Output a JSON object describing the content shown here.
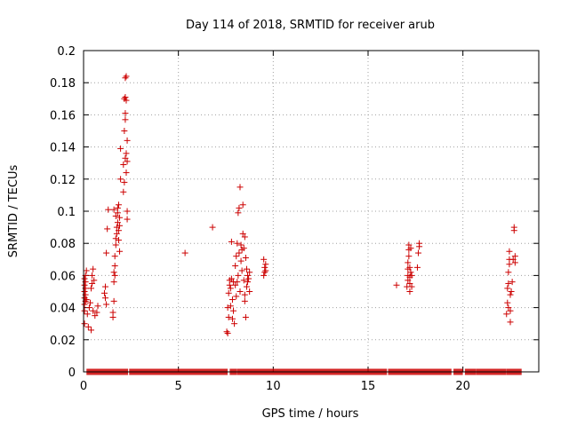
{
  "chart_data": {
    "type": "scatter",
    "title": "Day 114 of 2018, SRMTID for receiver arub",
    "xlabel": "GPS time / hours",
    "ylabel": "SRMTID / TECUs",
    "xlim": [
      0,
      24
    ],
    "ylim": [
      0,
      0.2
    ],
    "xticks": [
      0,
      5,
      10,
      15,
      20
    ],
    "yticks": [
      0,
      0.02,
      0.04,
      0.06,
      0.08,
      0.1,
      0.12,
      0.14,
      0.16,
      0.18,
      0.2
    ],
    "grid": true,
    "marker": "+",
    "series": [
      {
        "name": "SRMTID",
        "color": "#cc0000",
        "points": [
          [
            0.05,
            0.03
          ],
          [
            0.05,
            0.038
          ],
          [
            0.05,
            0.042
          ],
          [
            0.05,
            0.046
          ],
          [
            0.05,
            0.05
          ],
          [
            0.05,
            0.054
          ],
          [
            0.05,
            0.058
          ],
          [
            0.1,
            0.044
          ],
          [
            0.1,
            0.048
          ],
          [
            0.1,
            0.052
          ],
          [
            0.1,
            0.056
          ],
          [
            0.1,
            0.06
          ],
          [
            0.15,
            0.045
          ],
          [
            0.15,
            0.063
          ],
          [
            0.2,
            0.036
          ],
          [
            0.25,
            0.028
          ],
          [
            0.3,
            0.04
          ],
          [
            0.35,
            0.043
          ],
          [
            0.4,
            0.026
          ],
          [
            0.4,
            0.052
          ],
          [
            0.45,
            0.055
          ],
          [
            0.45,
            0.06
          ],
          [
            0.5,
            0.064
          ],
          [
            0.5,
            0.038
          ],
          [
            0.55,
            0.057
          ],
          [
            0.6,
            0.035
          ],
          [
            0.7,
            0.037
          ],
          [
            0.75,
            0.041
          ],
          [
            1.1,
            0.049
          ],
          [
            1.15,
            0.053
          ],
          [
            1.15,
            0.046
          ],
          [
            1.2,
            0.042
          ],
          [
            1.2,
            0.074
          ],
          [
            1.25,
            0.089
          ],
          [
            1.3,
            0.101
          ],
          [
            1.55,
            0.034
          ],
          [
            1.55,
            0.037
          ],
          [
            1.6,
            0.044
          ],
          [
            1.6,
            0.056
          ],
          [
            1.6,
            0.062
          ],
          [
            1.6,
            0.101
          ],
          [
            1.65,
            0.06
          ],
          [
            1.65,
            0.066
          ],
          [
            1.65,
            0.072
          ],
          [
            1.7,
            0.079
          ],
          [
            1.7,
            0.083
          ],
          [
            1.7,
            0.097
          ],
          [
            1.75,
            0.086
          ],
          [
            1.75,
            0.09
          ],
          [
            1.8,
            0.093
          ],
          [
            1.8,
            0.099
          ],
          [
            1.8,
            0.102
          ],
          [
            1.85,
            0.082
          ],
          [
            1.85,
            0.088
          ],
          [
            1.85,
            0.104
          ],
          [
            1.9,
            0.075
          ],
          [
            1.9,
            0.091
          ],
          [
            1.9,
            0.096
          ],
          [
            1.95,
            0.12
          ],
          [
            1.95,
            0.139
          ],
          [
            2.1,
            0.129
          ],
          [
            2.1,
            0.112
          ],
          [
            2.15,
            0.118
          ],
          [
            2.15,
            0.15
          ],
          [
            2.15,
            0.17
          ],
          [
            2.2,
            0.133
          ],
          [
            2.2,
            0.157
          ],
          [
            2.2,
            0.161
          ],
          [
            2.2,
            0.171
          ],
          [
            2.2,
            0.183
          ],
          [
            2.25,
            0.124
          ],
          [
            2.25,
            0.136
          ],
          [
            2.25,
            0.184
          ],
          [
            2.25,
            0.169
          ],
          [
            2.3,
            0.095
          ],
          [
            2.3,
            0.1
          ],
          [
            2.3,
            0.144
          ],
          [
            2.3,
            0.131
          ],
          [
            5.35,
            0.074
          ],
          [
            6.8,
            0.09
          ],
          [
            7.55,
            0.025
          ],
          [
            7.6,
            0.024
          ],
          [
            7.6,
            0.04
          ],
          [
            7.65,
            0.034
          ],
          [
            7.65,
            0.049
          ],
          [
            7.7,
            0.054
          ],
          [
            7.7,
            0.057
          ],
          [
            7.75,
            0.052
          ],
          [
            7.75,
            0.041
          ],
          [
            7.8,
            0.058
          ],
          [
            7.8,
            0.081
          ],
          [
            7.85,
            0.033
          ],
          [
            7.85,
            0.045
          ],
          [
            7.9,
            0.056
          ],
          [
            7.9,
            0.038
          ],
          [
            7.95,
            0.03
          ],
          [
            8.0,
            0.066
          ],
          [
            8.0,
            0.054
          ],
          [
            8.05,
            0.072
          ],
          [
            8.05,
            0.047
          ],
          [
            8.1,
            0.08
          ],
          [
            8.1,
            0.056
          ],
          [
            8.15,
            0.06
          ],
          [
            8.15,
            0.099
          ],
          [
            8.2,
            0.074
          ],
          [
            8.2,
            0.102
          ],
          [
            8.25,
            0.115
          ],
          [
            8.25,
            0.05
          ],
          [
            8.3,
            0.069
          ],
          [
            8.3,
            0.079
          ],
          [
            8.35,
            0.063
          ],
          [
            8.35,
            0.076
          ],
          [
            8.4,
            0.104
          ],
          [
            8.4,
            0.086
          ],
          [
            8.45,
            0.057
          ],
          [
            8.45,
            0.077
          ],
          [
            8.5,
            0.044
          ],
          [
            8.5,
            0.048
          ],
          [
            8.5,
            0.084
          ],
          [
            8.55,
            0.034
          ],
          [
            8.55,
            0.071
          ],
          [
            8.6,
            0.053
          ],
          [
            8.6,
            0.064
          ],
          [
            8.65,
            0.056
          ],
          [
            8.65,
            0.06
          ],
          [
            8.7,
            0.058
          ],
          [
            8.75,
            0.062
          ],
          [
            8.75,
            0.05
          ],
          [
            9.5,
            0.07
          ],
          [
            9.5,
            0.06
          ],
          [
            9.55,
            0.065
          ],
          [
            9.55,
            0.062
          ],
          [
            9.6,
            0.067
          ],
          [
            9.6,
            0.063
          ],
          [
            16.5,
            0.054
          ],
          [
            17.05,
            0.053
          ],
          [
            17.1,
            0.057
          ],
          [
            17.1,
            0.06
          ],
          [
            17.1,
            0.064
          ],
          [
            17.1,
            0.068
          ],
          [
            17.15,
            0.072
          ],
          [
            17.15,
            0.076
          ],
          [
            17.15,
            0.079
          ],
          [
            17.2,
            0.05
          ],
          [
            17.2,
            0.055
          ],
          [
            17.2,
            0.059
          ],
          [
            17.2,
            0.065
          ],
          [
            17.25,
            0.062
          ],
          [
            17.25,
            0.077
          ],
          [
            17.3,
            0.06
          ],
          [
            17.3,
            0.053
          ],
          [
            17.6,
            0.065
          ],
          [
            17.65,
            0.074
          ],
          [
            17.7,
            0.078
          ],
          [
            17.7,
            0.08
          ],
          [
            22.3,
            0.036
          ],
          [
            22.35,
            0.043
          ],
          [
            22.35,
            0.052
          ],
          [
            22.4,
            0.04
          ],
          [
            22.4,
            0.055
          ],
          [
            22.4,
            0.062
          ],
          [
            22.45,
            0.067
          ],
          [
            22.45,
            0.07
          ],
          [
            22.45,
            0.075
          ],
          [
            22.5,
            0.031
          ],
          [
            22.5,
            0.038
          ],
          [
            22.5,
            0.048
          ],
          [
            22.55,
            0.05
          ],
          [
            22.6,
            0.056
          ],
          [
            22.65,
            0.07
          ],
          [
            22.7,
            0.088
          ],
          [
            22.7,
            0.09
          ],
          [
            22.75,
            0.072
          ],
          [
            22.75,
            0.068
          ]
        ],
        "zero_band": [
          [
            0.2,
            2.3
          ],
          [
            2.45,
            7.55
          ],
          [
            7.75,
            8.05
          ],
          [
            8.15,
            15.95
          ],
          [
            16.1,
            19.35
          ],
          [
            19.55,
            19.95
          ],
          [
            20.15,
            20.65
          ],
          [
            20.75,
            22.25
          ],
          [
            22.35,
            23.05
          ]
        ]
      }
    ]
  }
}
